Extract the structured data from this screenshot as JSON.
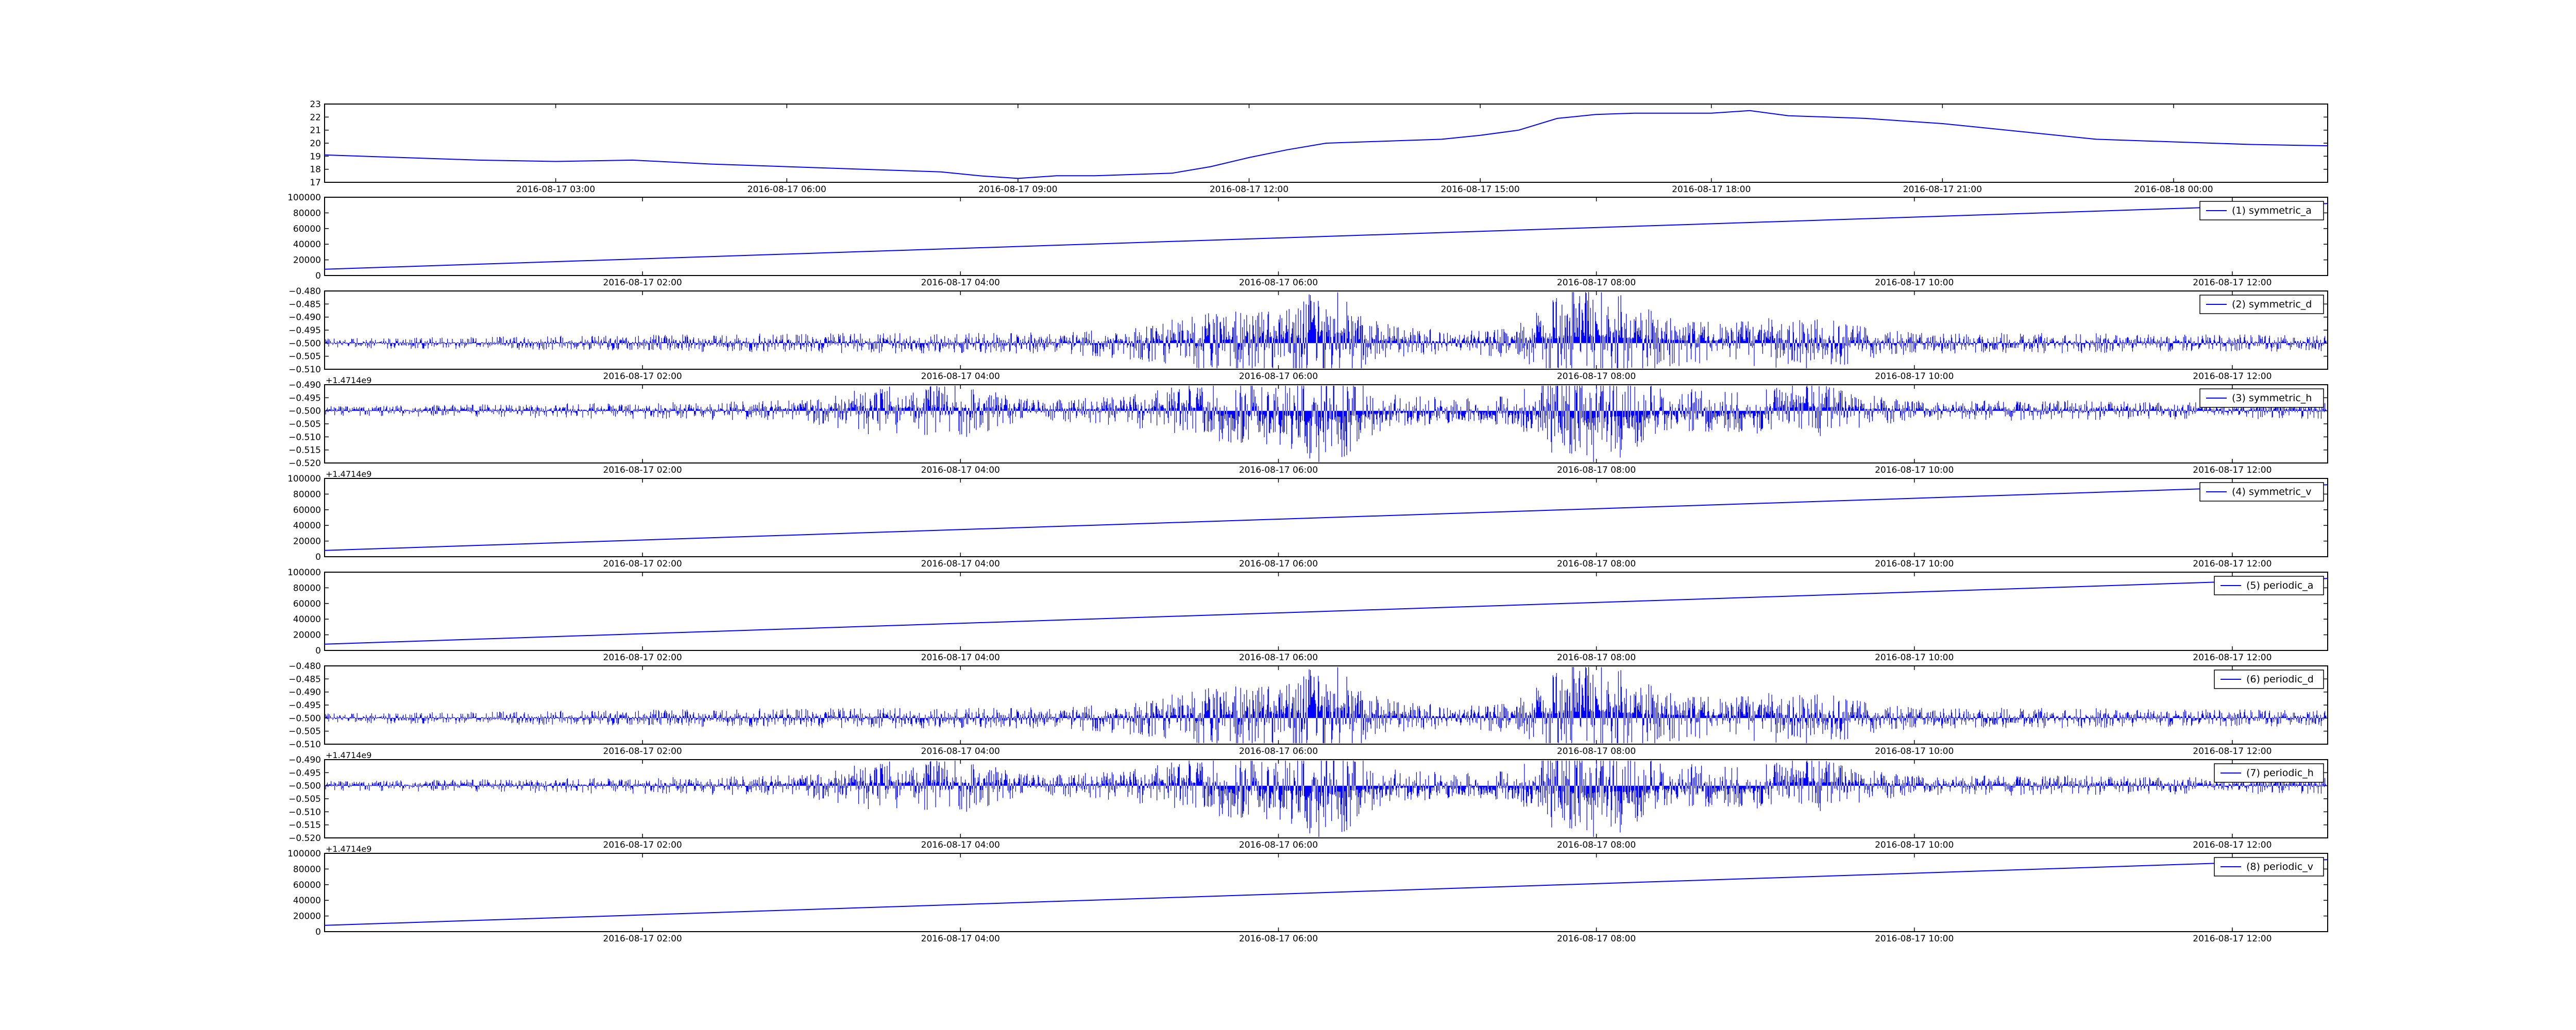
{
  "figure": {
    "background": "#ffffff",
    "line_color": "#0000ff"
  },
  "chart_data": [
    {
      "type": "line",
      "x_unit": "datetime",
      "xlim": [
        "2016-08-17 00:00",
        "2016-08-18 02:00"
      ],
      "xticks": [
        "2016-08-17 03:00",
        "2016-08-17 06:00",
        "2016-08-17 09:00",
        "2016-08-17 12:00",
        "2016-08-17 15:00",
        "2016-08-17 18:00",
        "2016-08-17 21:00",
        "2016-08-18 00:00"
      ],
      "ylim": [
        17,
        23
      ],
      "yticks": [
        "17",
        "18",
        "19",
        "20",
        "21",
        "22",
        "23"
      ],
      "offset_text": "",
      "series": [
        {
          "x": [
            "2016-08-17 00:00",
            "2016-08-17 01:00",
            "2016-08-17 02:00",
            "2016-08-17 03:00",
            "2016-08-17 04:00",
            "2016-08-17 05:00",
            "2016-08-17 06:00",
            "2016-08-17 07:00",
            "2016-08-17 08:00",
            "2016-08-17 08:30",
            "2016-08-17 09:00",
            "2016-08-17 09:30",
            "2016-08-17 10:00",
            "2016-08-17 10:30",
            "2016-08-17 11:00",
            "2016-08-17 11:30",
            "2016-08-17 12:00",
            "2016-08-17 12:30",
            "2016-08-17 13:00",
            "2016-08-17 14:00",
            "2016-08-17 14:30",
            "2016-08-17 15:00",
            "2016-08-17 15:30",
            "2016-08-17 16:00",
            "2016-08-17 16:30",
            "2016-08-17 17:00",
            "2016-08-17 18:00",
            "2016-08-17 18:30",
            "2016-08-17 19:00",
            "2016-08-17 19:30",
            "2016-08-17 20:00",
            "2016-08-17 21:00",
            "2016-08-17 22:00",
            "2016-08-17 23:00",
            "2016-08-18 00:00",
            "2016-08-18 01:00",
            "2016-08-18 02:00"
          ],
          "y": [
            19.1,
            18.9,
            18.7,
            18.6,
            18.7,
            18.4,
            18.2,
            18.0,
            17.8,
            17.5,
            17.3,
            17.5,
            17.5,
            17.6,
            17.7,
            18.2,
            18.9,
            19.5,
            20.0,
            20.2,
            20.3,
            20.6,
            21.0,
            21.9,
            22.2,
            22.3,
            22.3,
            22.5,
            22.1,
            22.0,
            21.9,
            21.5,
            20.9,
            20.3,
            20.1,
            19.9,
            19.8
          ]
        }
      ]
    },
    {
      "type": "line",
      "x_unit": "datetime",
      "xlim": [
        "2016-08-17 00:00",
        "2016-08-17 12:36"
      ],
      "xticks": [
        "2016-08-17 02:00",
        "2016-08-17 04:00",
        "2016-08-17 06:00",
        "2016-08-17 08:00",
        "2016-08-17 10:00",
        "2016-08-17 12:00"
      ],
      "ylim": [
        0,
        100000
      ],
      "yticks": [
        "0",
        "20000",
        "40000",
        "60000",
        "80000",
        "100000"
      ],
      "offset_text": "",
      "legend_position": "top-right",
      "series": [
        {
          "name": "(1) symmetric_a",
          "x": [
            "2016-08-17 00:00",
            "2016-08-17 12:36"
          ],
          "y": [
            8000,
            92000
          ]
        }
      ]
    },
    {
      "type": "line",
      "x_unit": "datetime",
      "xlim": [
        "2016-08-17 00:00",
        "2016-08-17 12:36"
      ],
      "xticks": [
        "2016-08-17 02:00",
        "2016-08-17 04:00",
        "2016-08-17 06:00",
        "2016-08-17 08:00",
        "2016-08-17 10:00",
        "2016-08-17 12:00"
      ],
      "ylim": [
        -0.51,
        -0.48
      ],
      "yticks": [
        "−0.510",
        "−0.505",
        "−0.500",
        "−0.495",
        "−0.490",
        "−0.485",
        "−0.480"
      ],
      "offset_text": "",
      "legend_position": "top-right",
      "series": [
        {
          "name": "(2) symmetric_d",
          "x": [],
          "y": []
        }
      ]
    },
    {
      "type": "line",
      "x_unit": "datetime",
      "xlim": [
        "2016-08-17 00:00",
        "2016-08-17 12:36"
      ],
      "xticks": [
        "2016-08-17 02:00",
        "2016-08-17 04:00",
        "2016-08-17 06:00",
        "2016-08-17 08:00",
        "2016-08-17 10:00",
        "2016-08-17 12:00"
      ],
      "ylim": [
        -0.52,
        -0.49
      ],
      "yticks": [
        "−0.520",
        "−0.515",
        "−0.510",
        "−0.505",
        "−0.500",
        "−0.495",
        "−0.490"
      ],
      "offset_text": "+1.4714e9",
      "legend_position": "top-right",
      "series": [
        {
          "name": "(3) symmetric_h",
          "x": [],
          "y": []
        }
      ]
    },
    {
      "type": "line",
      "x_unit": "datetime",
      "xlim": [
        "2016-08-17 00:00",
        "2016-08-17 12:36"
      ],
      "xticks": [
        "2016-08-17 02:00",
        "2016-08-17 04:00",
        "2016-08-17 06:00",
        "2016-08-17 08:00",
        "2016-08-17 10:00",
        "2016-08-17 12:00"
      ],
      "ylim": [
        0,
        100000
      ],
      "yticks": [
        "0",
        "20000",
        "40000",
        "60000",
        "80000",
        "100000"
      ],
      "offset_text": "+1.4714e9",
      "legend_position": "top-right",
      "series": [
        {
          "name": "(4) symmetric_v",
          "x": [
            "2016-08-17 00:00",
            "2016-08-17 12:36"
          ],
          "y": [
            8000,
            92000
          ]
        }
      ]
    },
    {
      "type": "line",
      "x_unit": "datetime",
      "xlim": [
        "2016-08-17 00:00",
        "2016-08-17 12:36"
      ],
      "xticks": [
        "2016-08-17 02:00",
        "2016-08-17 04:00",
        "2016-08-17 06:00",
        "2016-08-17 08:00",
        "2016-08-17 10:00",
        "2016-08-17 12:00"
      ],
      "ylim": [
        0,
        100000
      ],
      "yticks": [
        "0",
        "20000",
        "40000",
        "60000",
        "80000",
        "100000"
      ],
      "offset_text": "",
      "legend_position": "top-right",
      "series": [
        {
          "name": "(5) periodic_a",
          "x": [
            "2016-08-17 00:00",
            "2016-08-17 12:36"
          ],
          "y": [
            8000,
            92000
          ]
        }
      ]
    },
    {
      "type": "line",
      "x_unit": "datetime",
      "xlim": [
        "2016-08-17 00:00",
        "2016-08-17 12:36"
      ],
      "xticks": [
        "2016-08-17 02:00",
        "2016-08-17 04:00",
        "2016-08-17 06:00",
        "2016-08-17 08:00",
        "2016-08-17 10:00",
        "2016-08-17 12:00"
      ],
      "ylim": [
        -0.51,
        -0.48
      ],
      "yticks": [
        "−0.510",
        "−0.505",
        "−0.500",
        "−0.495",
        "−0.490",
        "−0.485",
        "−0.480"
      ],
      "offset_text": "",
      "legend_position": "top-right",
      "series": [
        {
          "name": "(6) periodic_d",
          "x": [],
          "y": []
        }
      ]
    },
    {
      "type": "line",
      "x_unit": "datetime",
      "xlim": [
        "2016-08-17 00:00",
        "2016-08-17 12:36"
      ],
      "xticks": [
        "2016-08-17 02:00",
        "2016-08-17 04:00",
        "2016-08-17 06:00",
        "2016-08-17 08:00",
        "2016-08-17 10:00",
        "2016-08-17 12:00"
      ],
      "ylim": [
        -0.52,
        -0.49
      ],
      "yticks": [
        "−0.520",
        "−0.515",
        "−0.510",
        "−0.505",
        "−0.500",
        "−0.495",
        "−0.490"
      ],
      "offset_text": "+1.4714e9",
      "legend_position": "top-right",
      "series": [
        {
          "name": "(7) periodic_h",
          "x": [],
          "y": []
        }
      ]
    },
    {
      "type": "line",
      "x_unit": "datetime",
      "xlim": [
        "2016-08-17 00:00",
        "2016-08-17 12:36"
      ],
      "xticks": [
        "2016-08-17 02:00",
        "2016-08-17 04:00",
        "2016-08-17 06:00",
        "2016-08-17 08:00",
        "2016-08-17 10:00",
        "2016-08-17 12:00"
      ],
      "ylim": [
        0,
        100000
      ],
      "yticks": [
        "0",
        "20000",
        "40000",
        "60000",
        "80000",
        "100000"
      ],
      "offset_text": "+1.4714e9",
      "legend_position": "top-right",
      "series": [
        {
          "name": "(8) periodic_v",
          "x": [
            "2016-08-17 00:00",
            "2016-08-17 12:36"
          ],
          "y": [
            8000,
            92000
          ]
        }
      ]
    }
  ]
}
